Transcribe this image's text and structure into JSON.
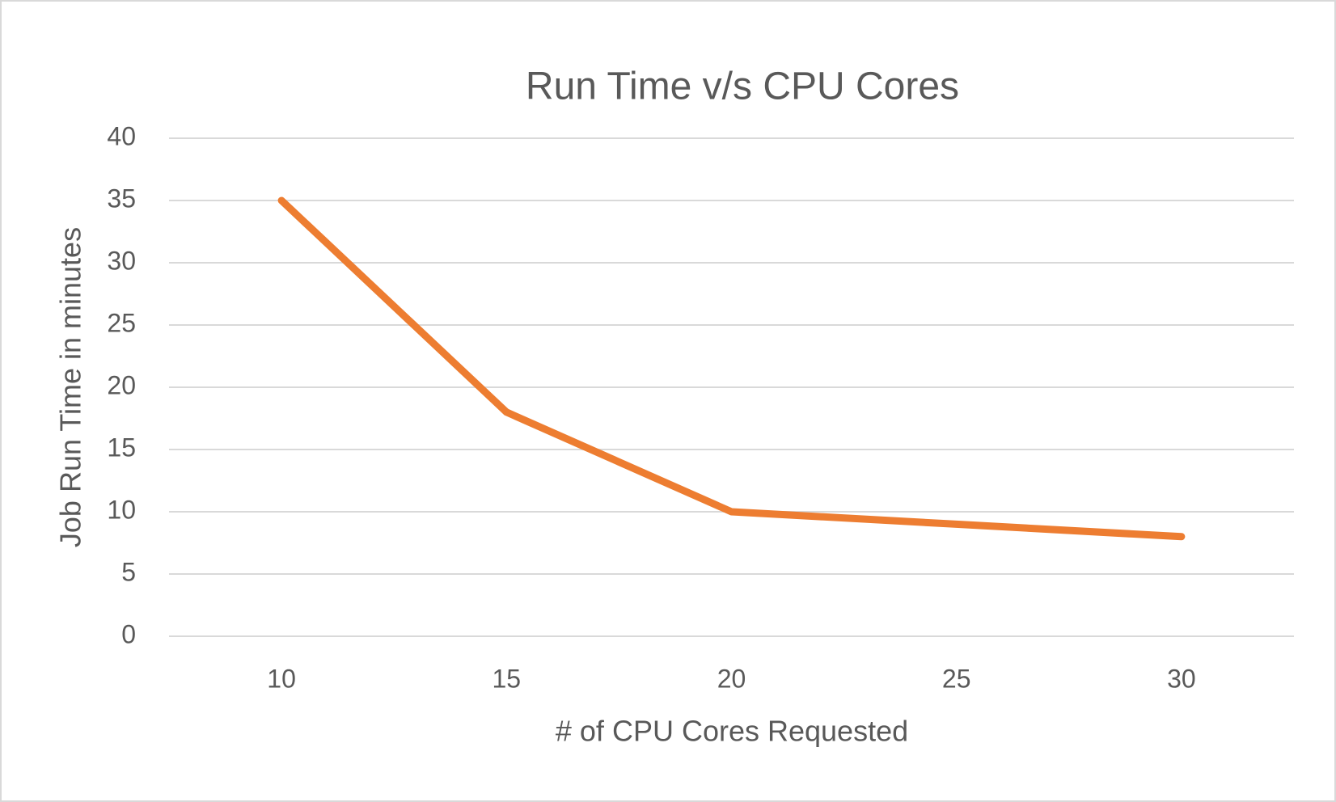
{
  "chart_data": {
    "type": "line",
    "title": "Run Time v/s CPU Cores",
    "x_label": "# of CPU Cores Requested",
    "y_label": "Job Run Time in minutes",
    "categories": [
      "10",
      "15",
      "20",
      "25",
      "30"
    ],
    "values": [
      35,
      18,
      10,
      9,
      8
    ],
    "color": "#ed7d31",
    "ylim": [
      0,
      40
    ],
    "yticks": [
      0,
      5,
      10,
      15,
      20,
      25,
      30,
      35,
      40
    ],
    "grid": true
  }
}
